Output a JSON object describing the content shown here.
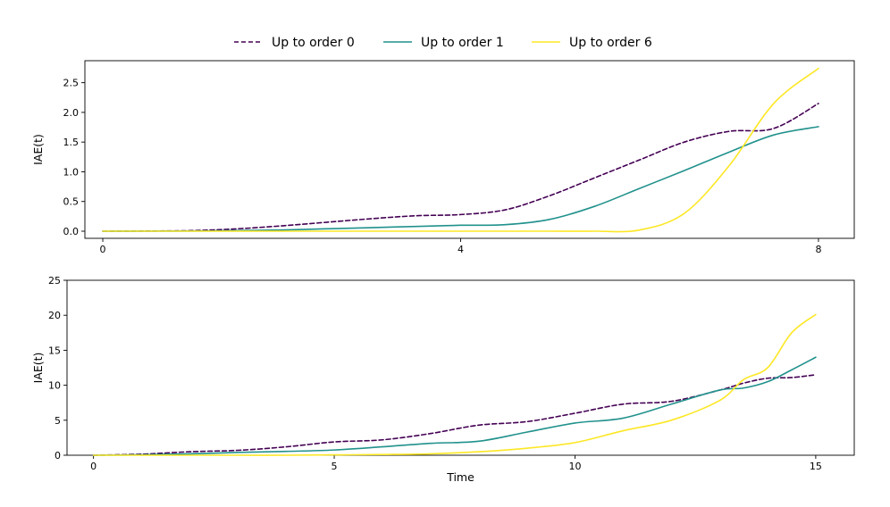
{
  "colors": {
    "Up to order 0": "#440154",
    "Up to order 1": "#21918c",
    "Up to order 6": "#fde725"
  },
  "legend": {
    "placement": "top-center",
    "entries": [
      {
        "label": "Up to order 0",
        "color": "#440154",
        "dash": true
      },
      {
        "label": "Up to order 1",
        "color": "#21918c",
        "dash": false
      },
      {
        "label": "Up to order 6",
        "color": "#fde725",
        "dash": false
      }
    ]
  },
  "chart_data": [
    {
      "type": "line",
      "ylabel": "IAE(t)",
      "xlabel": "",
      "xlim": [
        -0.2,
        8.4
      ],
      "ylim": [
        -0.12,
        2.87
      ],
      "xticks": [
        "0",
        "4",
        "8"
      ],
      "xtick_values": [
        0,
        4,
        8
      ],
      "yticks": [
        "0.0",
        "0.5",
        "1.0",
        "1.5",
        "2.0",
        "2.5"
      ],
      "ytick_values": [
        0,
        0.5,
        1.0,
        1.5,
        2.0,
        2.5
      ],
      "x": [
        0,
        0.5,
        1.0,
        1.5,
        2.0,
        2.5,
        3.0,
        3.5,
        4.0,
        4.5,
        5.0,
        5.5,
        6.0,
        6.5,
        7.0,
        7.5,
        8.0
      ],
      "series": [
        {
          "name": "Up to order 0",
          "values": [
            0.0,
            0.003,
            0.01,
            0.04,
            0.09,
            0.15,
            0.21,
            0.26,
            0.28,
            0.36,
            0.6,
            0.9,
            1.2,
            1.5,
            1.68,
            1.73,
            2.15
          ]
        },
        {
          "name": "Up to order 1",
          "values": [
            0.0,
            0.0,
            0.002,
            0.01,
            0.02,
            0.04,
            0.06,
            0.08,
            0.1,
            0.11,
            0.2,
            0.42,
            0.72,
            1.02,
            1.33,
            1.62,
            1.76
          ]
        },
        {
          "name": "Up to order 6",
          "values": [
            0.0,
            0.0,
            0.0,
            0.0,
            0.0,
            0.0,
            0.0,
            0.0,
            0.0,
            0.0,
            0.0,
            0.0,
            0.02,
            0.3,
            1.1,
            2.15,
            2.74
          ]
        }
      ]
    },
    {
      "type": "line",
      "ylabel": "IAE(t)",
      "xlabel": "Time",
      "xlim": [
        -0.55,
        15.8
      ],
      "ylim": [
        0,
        25
      ],
      "xticks": [
        "0",
        "5",
        "10",
        "15"
      ],
      "xtick_values": [
        0,
        5,
        10,
        15
      ],
      "yticks": [
        "0",
        "5",
        "10",
        "15",
        "20",
        "25"
      ],
      "ytick_values": [
        0,
        5,
        10,
        15,
        20,
        25
      ],
      "x": [
        0,
        1,
        2,
        3,
        4,
        5,
        6,
        7,
        8,
        9,
        10,
        11,
        12,
        13,
        13.5,
        14,
        14.5,
        15
      ],
      "series": [
        {
          "name": "Up to order 0",
          "values": [
            0.0,
            0.15,
            0.5,
            0.7,
            1.2,
            1.9,
            2.2,
            3.1,
            4.3,
            4.8,
            6.0,
            7.3,
            7.7,
            9.3,
            10.3,
            11.0,
            11.1,
            11.5
          ]
        },
        {
          "name": "Up to order 1",
          "values": [
            0.0,
            0.05,
            0.2,
            0.4,
            0.55,
            0.75,
            1.2,
            1.7,
            2.0,
            3.3,
            4.6,
            5.3,
            7.3,
            9.3,
            9.6,
            10.5,
            12.2,
            14.0
          ]
        },
        {
          "name": "Up to order 6",
          "values": [
            0.0,
            0.0,
            0.0,
            0.0,
            0.0,
            0.05,
            0.1,
            0.2,
            0.5,
            1.0,
            1.8,
            3.5,
            5.0,
            7.8,
            10.8,
            12.5,
            17.5,
            20.1
          ]
        }
      ]
    }
  ]
}
